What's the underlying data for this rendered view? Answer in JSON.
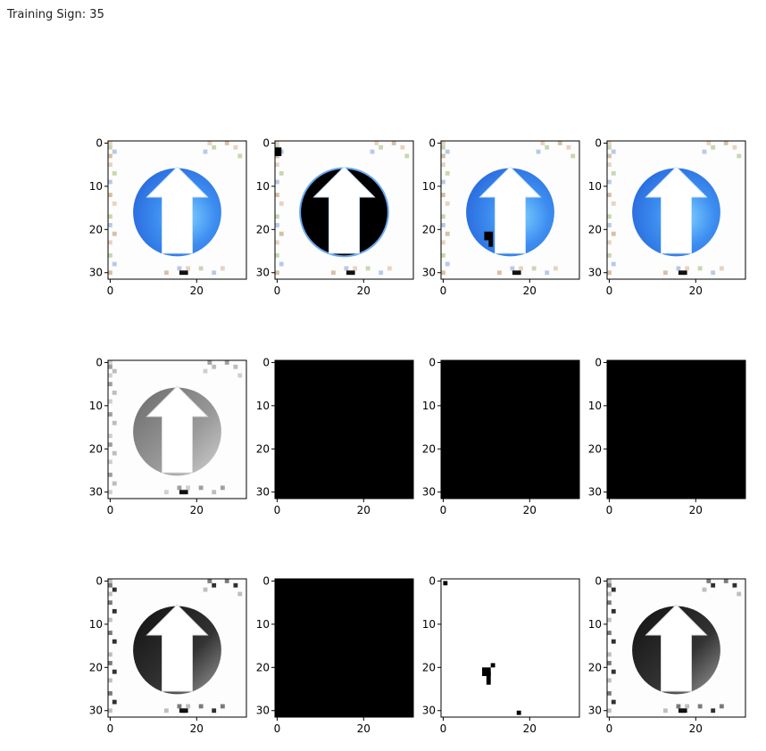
{
  "header": {
    "title": "Training Sign: 35"
  },
  "chart_data": {
    "type": "image-grid",
    "rows": 3,
    "cols": 4,
    "xticks": [
      0,
      20
    ],
    "yticks": [
      0,
      10,
      20,
      30
    ],
    "xlim": [
      -0.5,
      31.5
    ],
    "ylim": [
      31.5,
      -0.5
    ],
    "panels": [
      {
        "row": 0,
        "col": 0,
        "kind": "sign-color"
      },
      {
        "row": 0,
        "col": 1,
        "kind": "sign-color-black-disc"
      },
      {
        "row": 0,
        "col": 2,
        "kind": "sign-color-small-mark"
      },
      {
        "row": 0,
        "col": 3,
        "kind": "sign-color"
      },
      {
        "row": 1,
        "col": 0,
        "kind": "sign-gray-light"
      },
      {
        "row": 1,
        "col": 1,
        "kind": "black"
      },
      {
        "row": 1,
        "col": 2,
        "kind": "black"
      },
      {
        "row": 1,
        "col": 3,
        "kind": "black"
      },
      {
        "row": 2,
        "col": 0,
        "kind": "sign-gray-dark"
      },
      {
        "row": 2,
        "col": 1,
        "kind": "black"
      },
      {
        "row": 2,
        "col": 2,
        "kind": "white-specks"
      },
      {
        "row": 2,
        "col": 3,
        "kind": "sign-gray-dark"
      }
    ]
  }
}
